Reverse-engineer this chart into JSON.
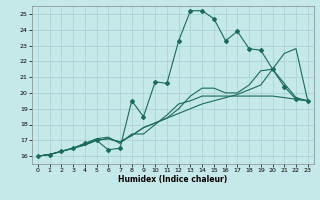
{
  "xlabel": "Humidex (Indice chaleur)",
  "xlim": [
    -0.5,
    23.5
  ],
  "ylim": [
    15.5,
    25.5
  ],
  "yticks": [
    16,
    17,
    18,
    19,
    20,
    21,
    22,
    23,
    24,
    25
  ],
  "xticks": [
    0,
    1,
    2,
    3,
    4,
    5,
    6,
    7,
    8,
    9,
    10,
    11,
    12,
    13,
    14,
    15,
    16,
    17,
    18,
    19,
    20,
    21,
    22,
    23
  ],
  "background_color": "#c5e8e8",
  "grid_color": "#a8d0d0",
  "line_color": "#1a6b5a",
  "series": [
    {
      "x": [
        0,
        1,
        2,
        3,
        4,
        5,
        6,
        7,
        8,
        9,
        10,
        11,
        12,
        13,
        14,
        15,
        16,
        17,
        18,
        19,
        20,
        21,
        22,
        23
      ],
      "y": [
        16.0,
        16.1,
        16.3,
        16.5,
        16.8,
        17.0,
        16.4,
        16.5,
        19.5,
        18.5,
        20.7,
        20.6,
        23.3,
        25.2,
        25.2,
        24.7,
        23.3,
        23.9,
        22.8,
        22.7,
        21.5,
        20.4,
        19.6,
        19.5
      ],
      "has_markers": true
    },
    {
      "x": [
        0,
        1,
        2,
        3,
        4,
        5,
        6,
        7,
        8,
        9,
        10,
        11,
        12,
        13,
        14,
        15,
        16,
        17,
        18,
        19,
        20,
        21,
        22,
        23
      ],
      "y": [
        16.0,
        16.1,
        16.3,
        16.5,
        16.8,
        17.1,
        17.2,
        16.8,
        17.4,
        17.4,
        18.0,
        18.6,
        19.3,
        19.5,
        19.8,
        19.8,
        19.8,
        19.8,
        19.8,
        19.8,
        19.8,
        19.7,
        19.6,
        19.5
      ],
      "has_markers": false
    },
    {
      "x": [
        0,
        1,
        2,
        3,
        4,
        5,
        6,
        7,
        8,
        9,
        10,
        11,
        12,
        13,
        14,
        15,
        16,
        17,
        18,
        19,
        20,
        21,
        22,
        23
      ],
      "y": [
        16.0,
        16.1,
        16.3,
        16.5,
        16.7,
        17.0,
        17.1,
        16.9,
        17.3,
        17.8,
        18.1,
        18.4,
        19.0,
        19.8,
        20.3,
        20.3,
        20.0,
        20.0,
        20.5,
        21.4,
        21.5,
        20.6,
        19.7,
        19.5
      ],
      "has_markers": false
    },
    {
      "x": [
        0,
        1,
        2,
        3,
        4,
        5,
        6,
        7,
        8,
        9,
        10,
        11,
        12,
        13,
        14,
        15,
        16,
        17,
        18,
        19,
        20,
        21,
        22,
        23
      ],
      "y": [
        16.0,
        16.1,
        16.3,
        16.5,
        16.7,
        17.0,
        17.1,
        16.9,
        17.3,
        17.8,
        18.1,
        18.4,
        18.7,
        19.0,
        19.3,
        19.5,
        19.7,
        19.9,
        20.2,
        20.5,
        21.5,
        22.5,
        22.8,
        19.5
      ],
      "has_markers": false
    }
  ]
}
